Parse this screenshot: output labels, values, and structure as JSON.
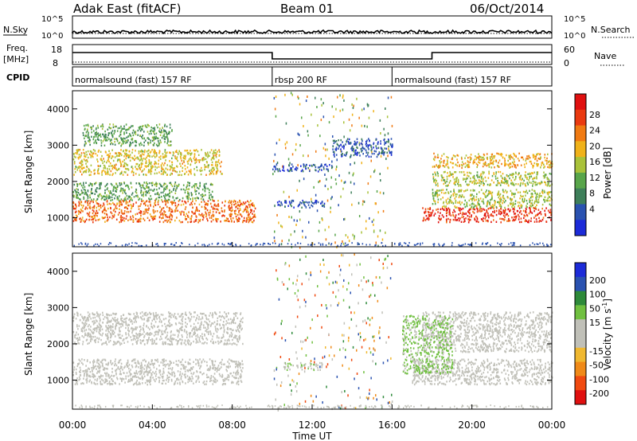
{
  "header": {
    "title": "Adak East (fitACF)",
    "beam": "Beam 01",
    "date": "06/Oct/2014"
  },
  "nsky": {
    "label": "N.Sky",
    "ticks": [
      "10^5",
      "10^0"
    ],
    "right_ticks": [
      "10^5",
      "10^0"
    ],
    "right_label": "N.Search"
  },
  "freq": {
    "label_line1": "Freq.",
    "label_line2": "[MHz]",
    "ticks": [
      "18",
      "8"
    ],
    "right_ticks": [
      "60",
      "0"
    ],
    "right_label": "Nave"
  },
  "cpid": {
    "label": "CPID",
    "segments": [
      {
        "label": "normalsound (fast) 157 RF",
        "start_h": 0,
        "end_h": 10
      },
      {
        "label": "rbsp 200 RF",
        "start_h": 10,
        "end_h": 16
      },
      {
        "label": "normalsound (fast) 157 RF",
        "start_h": 16,
        "end_h": 24
      }
    ]
  },
  "colors": {
    "power_scale": [
      "#1c2bd8",
      "#2a52b0",
      "#3e7f5a",
      "#58a54a",
      "#a9c23a",
      "#f0b21a",
      "#f07a12",
      "#ea3a10",
      "#e01010"
    ],
    "velocity_scale": [
      "#e01010",
      "#f04a10",
      "#f08a18",
      "#f0b830",
      "#c0c0b8",
      "#c0c0b8",
      "#70c040",
      "#2e8a3a",
      "#2a52b0",
      "#1c2bd8"
    ]
  },
  "chart_data": [
    {
      "type": "heatmap",
      "panel": "power",
      "ylabel": "Slant Range [km]",
      "yticks": [
        "4000",
        "3000",
        "2000",
        "1000"
      ],
      "ylim": [
        200,
        4500
      ],
      "xlim": [
        0,
        24
      ],
      "colorbar_label": "Power [dB]",
      "colorbar_ticks": [
        "28",
        "24",
        "20",
        "16",
        "12",
        "8",
        "4"
      ],
      "colorbar_range": [
        0,
        32
      ],
      "regions": [
        {
          "t0": 0.0,
          "t1": 9.2,
          "r_lo": 900,
          "r_hi": 1500,
          "dB": 24
        },
        {
          "t0": 0.0,
          "t1": 7.0,
          "r_lo": 1500,
          "r_hi": 2000,
          "dB": 12
        },
        {
          "t0": 0.0,
          "t1": 7.5,
          "r_lo": 2200,
          "r_hi": 2900,
          "dB": 18
        },
        {
          "t0": 0.5,
          "t1": 5.0,
          "r_lo": 3000,
          "r_hi": 3600,
          "dB": 12
        },
        {
          "t0": 10.2,
          "t1": 12.6,
          "r_lo": 1300,
          "r_hi": 1500,
          "dB": 5
        },
        {
          "t0": 10.0,
          "t1": 13.0,
          "r_lo": 2300,
          "r_hi": 2500,
          "dB": 5
        },
        {
          "t0": 13.0,
          "t1": 16.0,
          "r_lo": 2700,
          "r_hi": 3200,
          "dB": 5
        },
        {
          "t0": 17.5,
          "t1": 24.0,
          "r_lo": 900,
          "r_hi": 1300,
          "dB": 28
        },
        {
          "t0": 18.0,
          "t1": 24.0,
          "r_lo": 1300,
          "r_hi": 1800,
          "dB": 16
        },
        {
          "t0": 18.0,
          "t1": 24.0,
          "r_lo": 1900,
          "r_hi": 2300,
          "dB": 16
        },
        {
          "t0": 18.0,
          "t1": 24.0,
          "r_lo": 2400,
          "r_hi": 2800,
          "dB": 20
        }
      ]
    },
    {
      "type": "heatmap",
      "panel": "velocity",
      "ylabel": "Slant Range [km]",
      "yticks": [
        "4000",
        "3000",
        "2000",
        "1000"
      ],
      "ylim": [
        200,
        4500
      ],
      "xlim": [
        0,
        24
      ],
      "xlabel": "Time UT",
      "xticks": [
        "00:00",
        "04:00",
        "08:00",
        "12:00",
        "16:00",
        "20:00",
        "00:00"
      ],
      "colorbar_label": "Velocity [m s^-1]",
      "colorbar_ticks": [
        "200",
        "100",
        "50",
        "15",
        "-15",
        "-50",
        "-100",
        "-200"
      ],
      "colorbar_range": [
        -250,
        250
      ],
      "regions": [
        {
          "t0": 0.0,
          "t1": 8.5,
          "r_lo": 900,
          "r_hi": 1600,
          "v": 0
        },
        {
          "t0": 0.0,
          "t1": 8.5,
          "r_lo": 2000,
          "r_hi": 2900,
          "v": 0
        },
        {
          "t0": 10.5,
          "t1": 12.5,
          "r_lo": 1300,
          "r_hi": 1500,
          "v": 40
        },
        {
          "t0": 17.0,
          "t1": 24.0,
          "r_lo": 900,
          "r_hi": 1600,
          "v": 0
        },
        {
          "t0": 17.5,
          "t1": 24.0,
          "r_lo": 1800,
          "r_hi": 2900,
          "v": 0
        },
        {
          "t0": 16.5,
          "t1": 19.0,
          "r_lo": 1200,
          "r_hi": 2800,
          "v": 60
        }
      ]
    }
  ]
}
